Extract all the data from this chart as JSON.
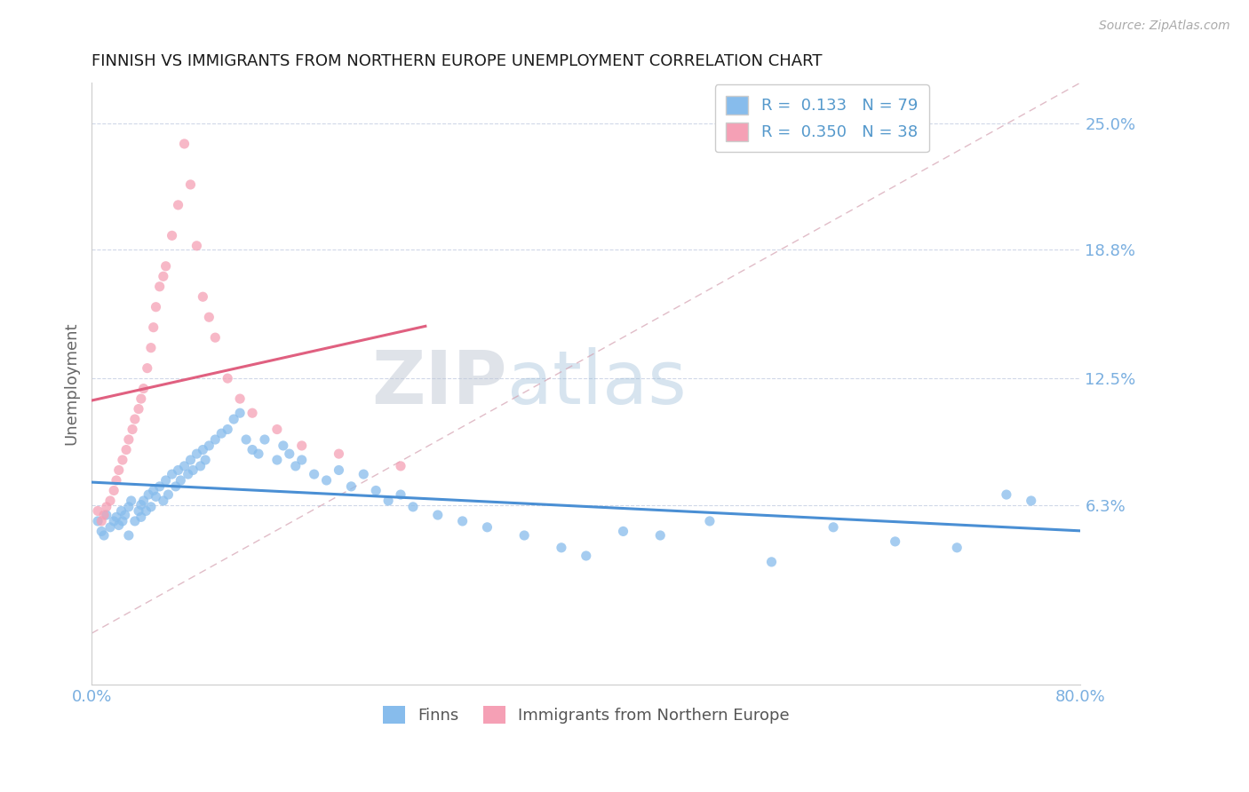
{
  "title": "FINNISH VS IMMIGRANTS FROM NORTHERN EUROPE UNEMPLOYMENT CORRELATION CHART",
  "source": "Source: ZipAtlas.com",
  "ylabel": "Unemployment",
  "ytick_vals": [
    0.063,
    0.125,
    0.188,
    0.25
  ],
  "ytick_labels": [
    "6.3%",
    "12.5%",
    "18.8%",
    "25.0%"
  ],
  "xlim": [
    0.0,
    0.8
  ],
  "ylim": [
    -0.025,
    0.27
  ],
  "watermark_zip": "ZIP",
  "watermark_atlas": "atlas",
  "label_finns": "Finns",
  "label_immigrants": "Immigrants from Northern Europe",
  "color_finns": "#87BCEC",
  "color_immigrants": "#F5A0B5",
  "color_line_finns": "#4a8fd4",
  "color_line_immigrants": "#e06080",
  "color_diagonal": "#e8a0b0",
  "color_title": "#1a1a1a",
  "color_ytick": "#7aafe0",
  "color_xtick": "#7aafe0",
  "color_legend_text": "#5599cc",
  "color_source": "#aaaaaa",
  "color_ylabel": "#666666",
  "legend_r1": "R =  0.133",
  "legend_n1": "N = 79",
  "legend_r2": "R =  0.350",
  "legend_n2": "N = 38",
  "background": "#ffffff",
  "finns_x": [
    0.005,
    0.008,
    0.01,
    0.012,
    0.015,
    0.018,
    0.02,
    0.022,
    0.024,
    0.025,
    0.027,
    0.03,
    0.03,
    0.032,
    0.035,
    0.038,
    0.04,
    0.04,
    0.042,
    0.044,
    0.046,
    0.048,
    0.05,
    0.052,
    0.055,
    0.058,
    0.06,
    0.062,
    0.065,
    0.068,
    0.07,
    0.072,
    0.075,
    0.078,
    0.08,
    0.082,
    0.085,
    0.088,
    0.09,
    0.092,
    0.095,
    0.1,
    0.105,
    0.11,
    0.115,
    0.12,
    0.125,
    0.13,
    0.135,
    0.14,
    0.15,
    0.155,
    0.16,
    0.165,
    0.17,
    0.18,
    0.19,
    0.2,
    0.21,
    0.22,
    0.23,
    0.24,
    0.25,
    0.26,
    0.28,
    0.3,
    0.32,
    0.35,
    0.38,
    0.4,
    0.43,
    0.46,
    0.5,
    0.55,
    0.6,
    0.65,
    0.7,
    0.74,
    0.76
  ],
  "finns_y": [
    0.055,
    0.05,
    0.048,
    0.058,
    0.052,
    0.055,
    0.057,
    0.053,
    0.06,
    0.055,
    0.058,
    0.062,
    0.048,
    0.065,
    0.055,
    0.06,
    0.063,
    0.057,
    0.065,
    0.06,
    0.068,
    0.062,
    0.07,
    0.067,
    0.072,
    0.065,
    0.075,
    0.068,
    0.078,
    0.072,
    0.08,
    0.075,
    0.082,
    0.078,
    0.085,
    0.08,
    0.088,
    0.082,
    0.09,
    0.085,
    0.092,
    0.095,
    0.098,
    0.1,
    0.105,
    0.108,
    0.095,
    0.09,
    0.088,
    0.095,
    0.085,
    0.092,
    0.088,
    0.082,
    0.085,
    0.078,
    0.075,
    0.08,
    0.072,
    0.078,
    0.07,
    0.065,
    0.068,
    0.062,
    0.058,
    0.055,
    0.052,
    0.048,
    0.042,
    0.038,
    0.05,
    0.048,
    0.055,
    0.035,
    0.052,
    0.045,
    0.042,
    0.068,
    0.065
  ],
  "immigrants_x": [
    0.005,
    0.008,
    0.01,
    0.012,
    0.015,
    0.018,
    0.02,
    0.022,
    0.025,
    0.028,
    0.03,
    0.033,
    0.035,
    0.038,
    0.04,
    0.042,
    0.045,
    0.048,
    0.05,
    0.052,
    0.055,
    0.058,
    0.06,
    0.065,
    0.07,
    0.075,
    0.08,
    0.085,
    0.09,
    0.095,
    0.1,
    0.11,
    0.12,
    0.13,
    0.15,
    0.17,
    0.2,
    0.25
  ],
  "immigrants_y": [
    0.06,
    0.055,
    0.058,
    0.062,
    0.065,
    0.07,
    0.075,
    0.08,
    0.085,
    0.09,
    0.095,
    0.1,
    0.105,
    0.11,
    0.115,
    0.12,
    0.13,
    0.14,
    0.15,
    0.16,
    0.17,
    0.175,
    0.18,
    0.195,
    0.21,
    0.24,
    0.22,
    0.19,
    0.165,
    0.155,
    0.145,
    0.125,
    0.115,
    0.108,
    0.1,
    0.092,
    0.088,
    0.082
  ]
}
